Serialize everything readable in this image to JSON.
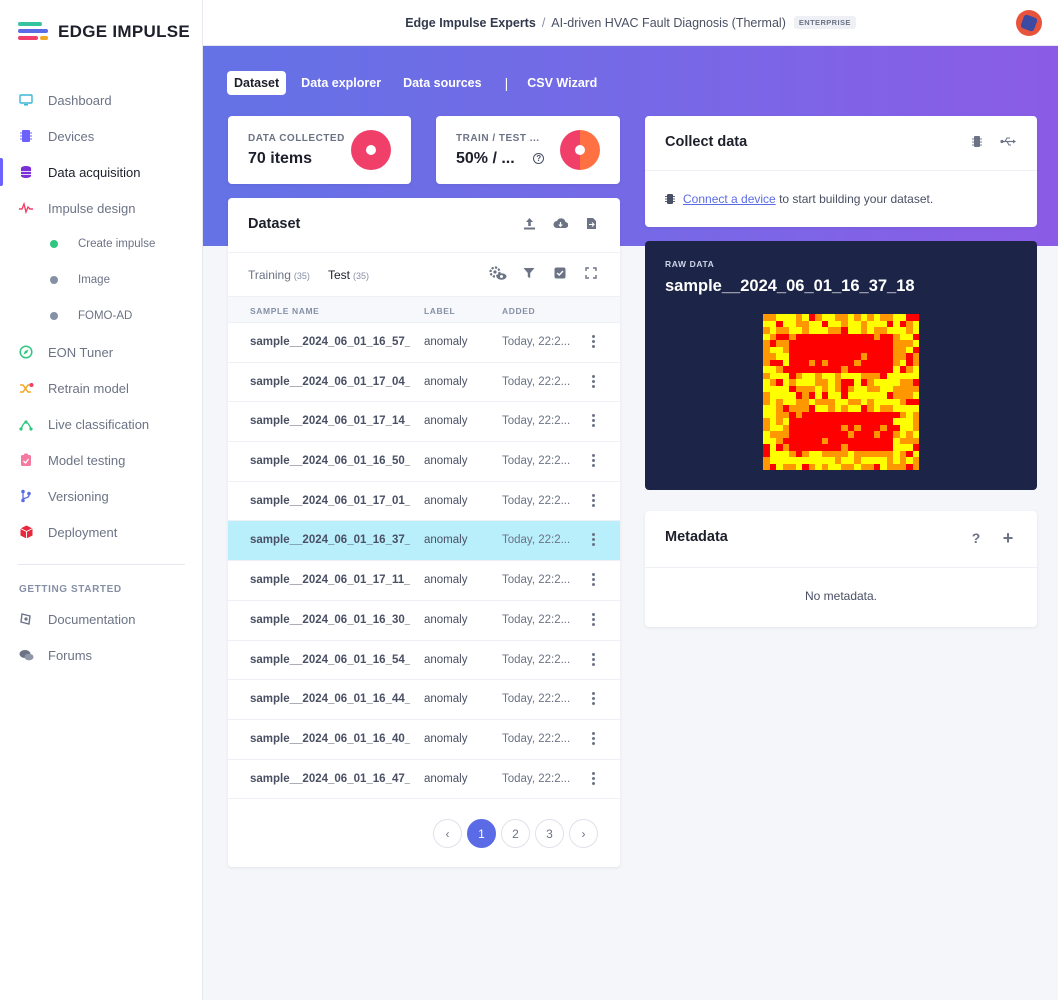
{
  "app": {
    "logo_text": "EDGE IMPULSE"
  },
  "topbar": {
    "owner": "Edge Impulse Experts",
    "separator": "/",
    "project": "AI-driven HVAC Fault Diagnosis (Thermal)",
    "badge": "ENTERPRISE"
  },
  "sidebar": {
    "items": [
      {
        "label": "Dashboard",
        "icon": "monitor-icon",
        "active": false
      },
      {
        "label": "Devices",
        "icon": "chip-icon",
        "active": false
      },
      {
        "label": "Data acquisition",
        "icon": "database-icon",
        "active": true
      },
      {
        "label": "Impulse design",
        "icon": "pulse-icon",
        "active": false
      }
    ],
    "sub_items": [
      {
        "label": "Create impulse",
        "dot": "green"
      },
      {
        "label": "Image",
        "dot": "gray"
      },
      {
        "label": "FOMO-AD",
        "dot": "gray"
      }
    ],
    "items2": [
      {
        "label": "EON Tuner",
        "icon": "compass-icon"
      },
      {
        "label": "Retrain model",
        "icon": "shuffle-icon"
      },
      {
        "label": "Live classification",
        "icon": "network-icon"
      },
      {
        "label": "Model testing",
        "icon": "clipboard-check-icon"
      },
      {
        "label": "Versioning",
        "icon": "branch-icon"
      },
      {
        "label": "Deployment",
        "icon": "box-icon"
      }
    ],
    "section_title": "GETTING STARTED",
    "getting_started": [
      {
        "label": "Documentation",
        "icon": "docs-icon"
      },
      {
        "label": "Forums",
        "icon": "chat-icon"
      }
    ]
  },
  "tabs": [
    {
      "label": "Dataset",
      "active": true
    },
    {
      "label": "Data explorer",
      "active": false
    },
    {
      "label": "Data sources",
      "active": false
    },
    {
      "label": "CSV Wizard",
      "active": false
    }
  ],
  "tab_separator": "|",
  "stats": {
    "collected_label": "DATA COLLECTED",
    "collected_value": "70 items",
    "split_label": "TRAIN / TEST ...",
    "split_value": "50% / ...",
    "help_glyph": "?"
  },
  "dataset": {
    "title": "Dataset",
    "training_label": "Training",
    "training_count": "(35)",
    "test_label": "Test",
    "test_count": "(35)",
    "columns": [
      "SAMPLE NAME",
      "LABEL",
      "ADDED"
    ],
    "rows": [
      {
        "name": "sample__2024_06_01_16_57_...",
        "label": "anomaly",
        "added": "Today, 22:2..."
      },
      {
        "name": "sample__2024_06_01_17_04_...",
        "label": "anomaly",
        "added": "Today, 22:2..."
      },
      {
        "name": "sample__2024_06_01_17_14_...",
        "label": "anomaly",
        "added": "Today, 22:2..."
      },
      {
        "name": "sample__2024_06_01_16_50_...",
        "label": "anomaly",
        "added": "Today, 22:2..."
      },
      {
        "name": "sample__2024_06_01_17_01_...",
        "label": "anomaly",
        "added": "Today, 22:2..."
      },
      {
        "name": "sample__2024_06_01_16_37_...",
        "label": "anomaly",
        "added": "Today, 22:2...",
        "selected": true
      },
      {
        "name": "sample__2024_06_01_17_11_...",
        "label": "anomaly",
        "added": "Today, 22:2..."
      },
      {
        "name": "sample__2024_06_01_16_30_...",
        "label": "anomaly",
        "added": "Today, 22:2..."
      },
      {
        "name": "sample__2024_06_01_16_54_...",
        "label": "anomaly",
        "added": "Today, 22:2..."
      },
      {
        "name": "sample__2024_06_01_16_44_...",
        "label": "anomaly",
        "added": "Today, 22:2..."
      },
      {
        "name": "sample__2024_06_01_16_40_...",
        "label": "anomaly",
        "added": "Today, 22:2..."
      },
      {
        "name": "sample__2024_06_01_16_47_...",
        "label": "anomaly",
        "added": "Today, 22:2..."
      }
    ],
    "pagination": {
      "prev": "‹",
      "pages": [
        "1",
        "2",
        "3"
      ],
      "current": "1",
      "next": "›"
    }
  },
  "collect": {
    "title": "Collect data",
    "link_text": "Connect a device",
    "rest_text": " to start building your dataset."
  },
  "raw_data": {
    "label": "RAW DATA",
    "title": "sample__2024_06_01_16_37_18",
    "palette": [
      "#ff0000",
      "#ff9800",
      "#ffff00"
    ]
  },
  "metadata": {
    "title": "Metadata",
    "help_glyph": "?",
    "add_glyph": "+",
    "empty_text": "No metadata."
  },
  "colors": {
    "accent": "#5b6be6",
    "selected_row": "#b9eefb",
    "donut": "#f0406a",
    "donut_test": "#ff7043"
  }
}
